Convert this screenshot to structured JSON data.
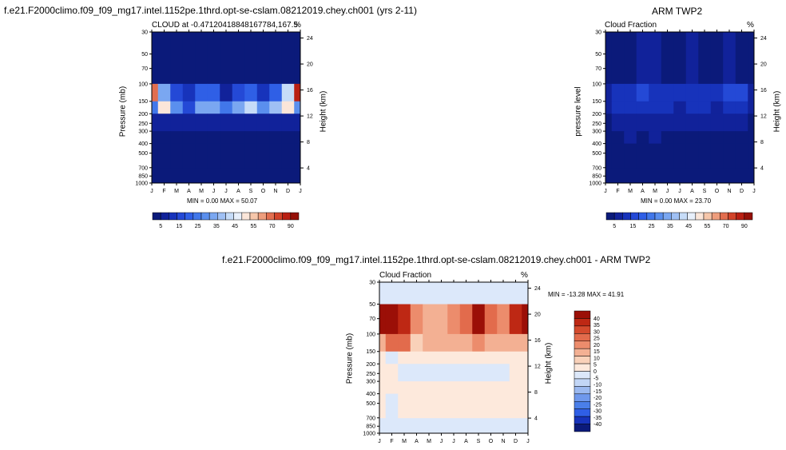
{
  "page": {
    "top_left_title": "f.e21.F2000climo.f09_f09_mg17.intel.1152pe.1thrd.opt-se-cslam.08212019.chey.ch001 (yrs 2-11)",
    "top_right_title": "ARM TWP2",
    "bottom_title": "f.e21.F2000climo.f09_f09_mg17.intel.1152pe.1thrd.opt-se-cslam.08212019.chey.ch001 - ARM TWP2"
  },
  "palette": {
    "seq": [
      "#0b1a7a",
      "#11229a",
      "#1733bb",
      "#2449d6",
      "#2f5fe6",
      "#4177ea",
      "#5a8fee",
      "#7aa7f1",
      "#9fc0f4",
      "#c6dcf8",
      "#e8f0fb",
      "#fbe6d9",
      "#f6c6aa",
      "#ee9d7c",
      "#e26e4f",
      "#d24329",
      "#b91f12",
      "#951008"
    ],
    "diff": [
      "#0b1a7a",
      "#1733bb",
      "#2f5fe6",
      "#4a7fe9",
      "#6f98ec",
      "#9bb9f0",
      "#c2d6f6",
      "#dce8fa",
      "#fde9dc",
      "#f9d1b9",
      "#f3b093",
      "#ec8c6c",
      "#e26b4c",
      "#d44a2d",
      "#be2814",
      "#9b0f07"
    ]
  },
  "chart_data": [
    {
      "type": "heatmap",
      "title_left": "CLOUD at -0.47120418848167784,167.5",
      "title_right": "%",
      "ylabel": "Pressure (mb)",
      "ylabel_right": "Height (km)",
      "x": [
        "J",
        "F",
        "M",
        "A",
        "M",
        "J",
        "J",
        "A",
        "S",
        "O",
        "N",
        "D",
        "J"
      ],
      "y_ticks": [
        30,
        50,
        70,
        100,
        150,
        200,
        250,
        300,
        400,
        500,
        700,
        850,
        1000
      ],
      "y_right_ticks": [
        24,
        20,
        16,
        12,
        8,
        4
      ],
      "ylim": [
        30,
        1000
      ],
      "y_scale": "log",
      "stats": "MIN =   0.00 MAX =  50.07",
      "colorbar_labels": [
        "5",
        "15",
        "25",
        "35",
        "45",
        "55",
        "70",
        "90"
      ],
      "colorbar_orientation": "horizontal",
      "levels": [
        100,
        150,
        200,
        300,
        400,
        700
      ],
      "values": [
        [
          0,
          0,
          0,
          0,
          0,
          0,
          0,
          0,
          0,
          0,
          0,
          0,
          0
        ],
        [
          45,
          22,
          10,
          8,
          15,
          14,
          6,
          10,
          14,
          9,
          14,
          30,
          50
        ],
        [
          18,
          35,
          20,
          12,
          22,
          24,
          18,
          24,
          28,
          20,
          26,
          35,
          20
        ],
        [
          4,
          5,
          6,
          6,
          6,
          5,
          6,
          5,
          5,
          4,
          4,
          4,
          5
        ],
        [
          2,
          3,
          3,
          3,
          3,
          3,
          2,
          2,
          2,
          3,
          2,
          2,
          3
        ],
        [
          3,
          3,
          3,
          3,
          3,
          3,
          3,
          3,
          3,
          3,
          3,
          2,
          2
        ]
      ]
    },
    {
      "type": "heatmap",
      "title_left": "Cloud Fraction",
      "title_right": "%",
      "ylabel": "pressure level",
      "ylabel_right": "Height (km)",
      "x": [
        "J",
        "F",
        "M",
        "A",
        "M",
        "J",
        "J",
        "A",
        "S",
        "O",
        "N",
        "D",
        "J"
      ],
      "y_ticks": [
        30,
        50,
        70,
        100,
        150,
        200,
        250,
        300,
        400,
        500,
        700,
        850,
        1000
      ],
      "y_right_ticks": [
        24,
        20,
        16,
        12,
        8,
        4
      ],
      "ylim": [
        30,
        1000
      ],
      "y_scale": "log",
      "stats": "MIN =   0.00 MAX =  23.70",
      "colorbar_labels": [
        "5",
        "15",
        "25",
        "35",
        "45",
        "55",
        "70",
        "90"
      ],
      "colorbar_orientation": "horizontal",
      "levels": [
        100,
        150,
        200,
        300,
        400,
        700
      ],
      "values": [
        [
          3,
          3,
          3,
          4,
          4,
          3,
          3,
          4,
          3,
          3,
          4,
          3,
          3
        ],
        [
          6,
          8,
          9,
          10,
          9,
          8,
          8,
          9,
          8,
          8,
          10,
          11,
          6
        ],
        [
          6,
          7,
          7,
          8,
          7,
          7,
          6,
          7,
          7,
          6,
          8,
          7,
          6
        ],
        [
          3,
          4,
          5,
          5,
          5,
          4,
          5,
          5,
          5,
          4,
          5,
          4,
          3
        ],
        [
          3,
          3,
          4,
          3,
          4,
          3,
          3,
          3,
          2,
          3,
          3,
          3,
          3
        ],
        [
          2,
          3,
          3,
          2,
          2,
          3,
          2,
          3,
          2,
          2,
          3,
          3,
          2
        ]
      ]
    },
    {
      "type": "heatmap",
      "title_left": "Cloud Fraction",
      "title_right": "%",
      "ylabel": "Pressure (mb)",
      "ylabel_right": "Height (km)",
      "x": [
        "J",
        "F",
        "M",
        "A",
        "M",
        "J",
        "J",
        "A",
        "S",
        "O",
        "N",
        "D",
        "J"
      ],
      "y_ticks": [
        30,
        50,
        70,
        100,
        150,
        200,
        250,
        300,
        400,
        500,
        700,
        850,
        1000
      ],
      "y_right_ticks": [
        24,
        20,
        16,
        12,
        8,
        4
      ],
      "ylim": [
        30,
        1000
      ],
      "y_scale": "log",
      "stats": "MIN = -13.28 MAX =  41.91",
      "colorbar_labels": [
        "40",
        "35",
        "30",
        "25",
        "20",
        "15",
        "10",
        "5",
        "0",
        "-5",
        "-10",
        "-15",
        "-20",
        "-25",
        "-30",
        "-35",
        "-40"
      ],
      "colorbar_orientation": "vertical",
      "levels": [
        50,
        100,
        150,
        200,
        300,
        400,
        700
      ],
      "values": [
        [
          -3,
          -3,
          -3,
          -3,
          -3,
          -3,
          -3,
          -3,
          -3,
          -3,
          -3,
          -3,
          -3
        ],
        [
          38,
          40,
          32,
          18,
          14,
          14,
          16,
          20,
          38,
          22,
          18,
          30,
          40
        ],
        [
          12,
          24,
          20,
          8,
          10,
          12,
          10,
          12,
          16,
          10,
          14,
          14,
          12
        ],
        [
          2,
          -4,
          1,
          1,
          1,
          1,
          1,
          1,
          1,
          1,
          1,
          2,
          2
        ],
        [
          2,
          2,
          -4,
          -5,
          -5,
          -5,
          -4,
          -3,
          -2,
          -3,
          -5,
          2,
          2
        ],
        [
          2,
          2,
          2,
          2,
          2,
          2,
          2,
          2,
          2,
          2,
          2,
          2,
          2
        ],
        [
          2,
          -3,
          2,
          2,
          2,
          2,
          2,
          2,
          2,
          2,
          2,
          2,
          2
        ]
      ]
    }
  ]
}
